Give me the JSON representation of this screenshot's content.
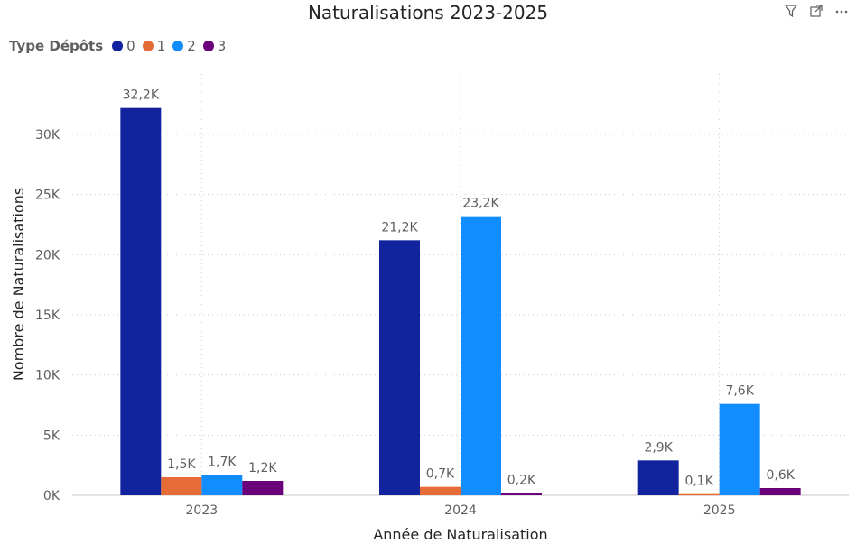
{
  "chart_data": {
    "type": "bar",
    "title": "Naturalisations 2023-2025",
    "xlabel": "Année de Naturalisation",
    "ylabel": "Nombre de Naturalisations",
    "categories": [
      "2023",
      "2024",
      "2025"
    ],
    "ylim": [
      0,
      35000
    ],
    "yticks": [
      0,
      5000,
      10000,
      15000,
      20000,
      25000,
      30000
    ],
    "ytick_labels": [
      "0K",
      "5K",
      "10K",
      "15K",
      "20K",
      "25K",
      "30K"
    ],
    "legend_title": "Type Dépôts",
    "legend_position": "top-left",
    "grid": true,
    "series": [
      {
        "name": "0",
        "color": "#12239E",
        "values": [
          32200,
          21200,
          2900
        ],
        "labels": [
          "32,2K",
          "21,2K",
          "2,9K"
        ]
      },
      {
        "name": "1",
        "color": "#E66C37",
        "values": [
          1500,
          700,
          100
        ],
        "labels": [
          "1,5K",
          "0,7K",
          "0,1K"
        ]
      },
      {
        "name": "2",
        "color": "#118DFF",
        "values": [
          1700,
          23200,
          7600
        ],
        "labels": [
          "1,7K",
          "23,2K",
          "7,6K"
        ]
      },
      {
        "name": "3",
        "color": "#6B007B",
        "values": [
          1200,
          200,
          600
        ],
        "labels": [
          "1,2K",
          "0,2K",
          "0,6K"
        ]
      }
    ]
  },
  "icons": {
    "filter": "filter-icon",
    "focus": "focus-mode-icon",
    "more": "more-options-icon"
  }
}
